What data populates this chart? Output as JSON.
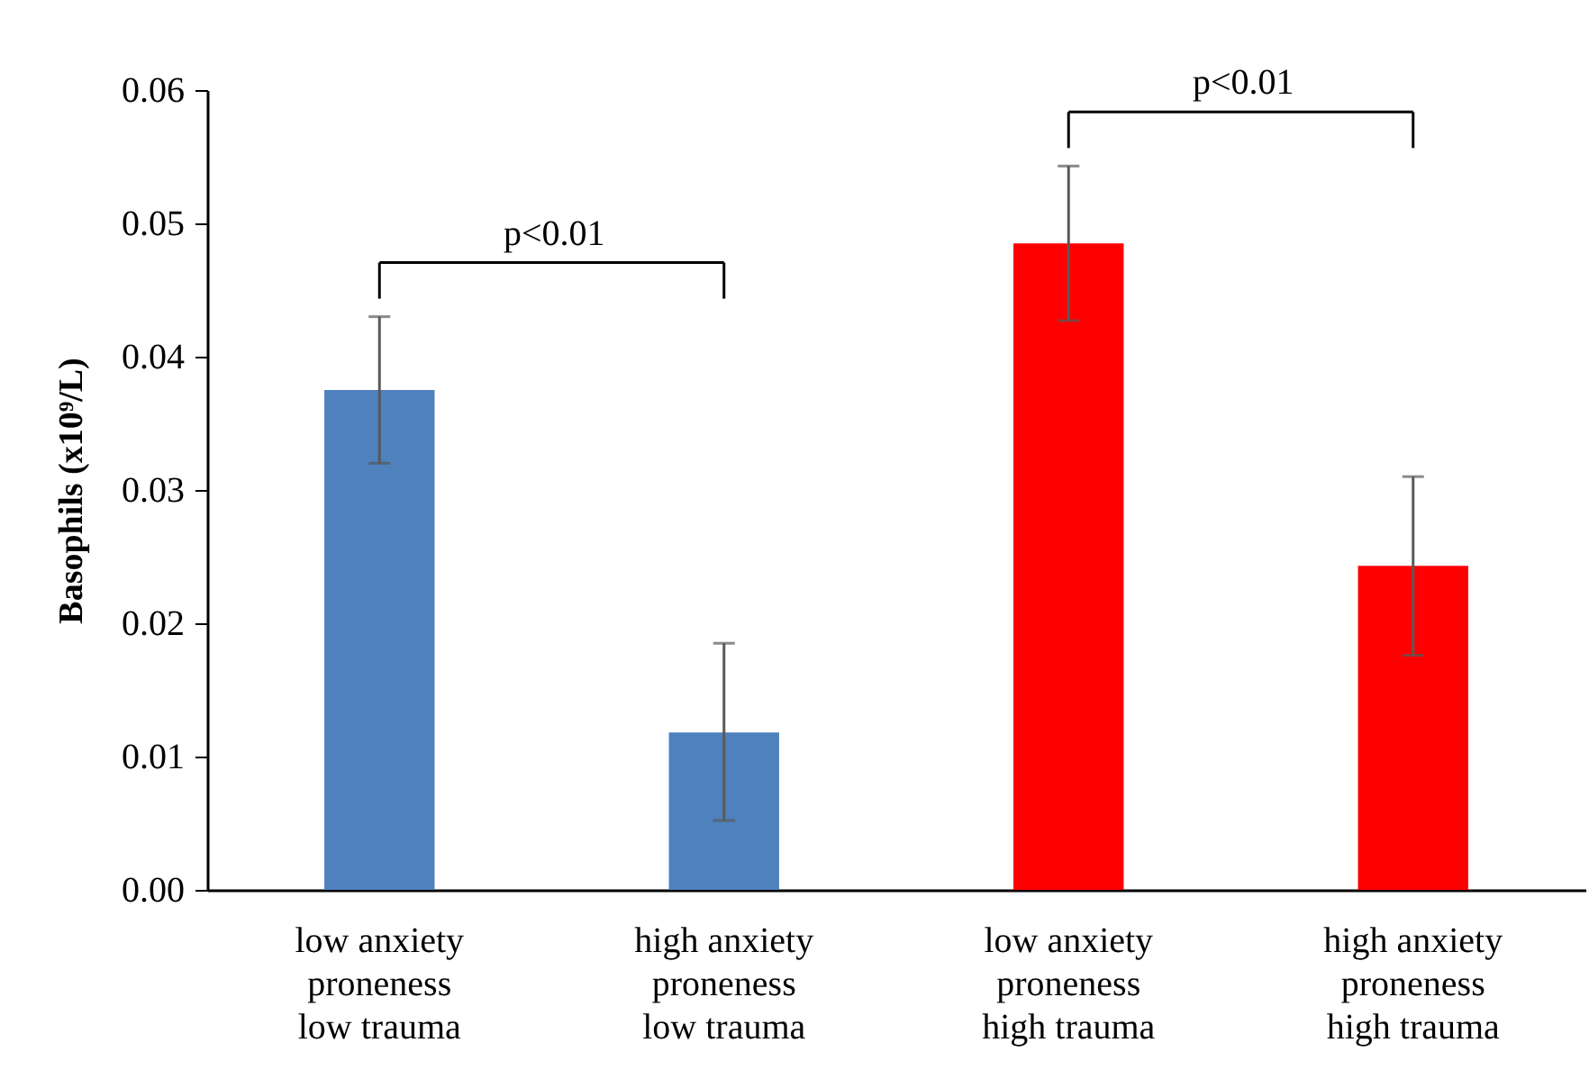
{
  "chart_data": {
    "type": "bar",
    "ylabel": "Basophils (x10⁹/L)",
    "categories": [
      "low anxiety\nproneness\nlow trauma",
      "high anxiety\nproneness\nlow trauma",
      "low anxiety\nproneness\nhigh trauma",
      "high anxiety\nproneness\nhigh trauma"
    ],
    "values": [
      0.0375,
      0.0118,
      0.0485,
      0.0243
    ],
    "colors": [
      "#4f81bd",
      "#4f81bd",
      "#ff0000",
      "#ff0000"
    ],
    "errors": [
      [
        0.032,
        0.043
      ],
      [
        0.0052,
        0.0185
      ],
      [
        0.0427,
        0.0543
      ],
      [
        0.0176,
        0.031
      ]
    ],
    "ylim": [
      0,
      0.06
    ],
    "yticks": [
      {
        "value": 0,
        "label": "0.00"
      },
      0.01,
      0.02,
      0.03,
      0.04,
      0.05,
      0.06
    ],
    "annotations": [
      "p<0.01",
      "p<0.01"
    ]
  }
}
